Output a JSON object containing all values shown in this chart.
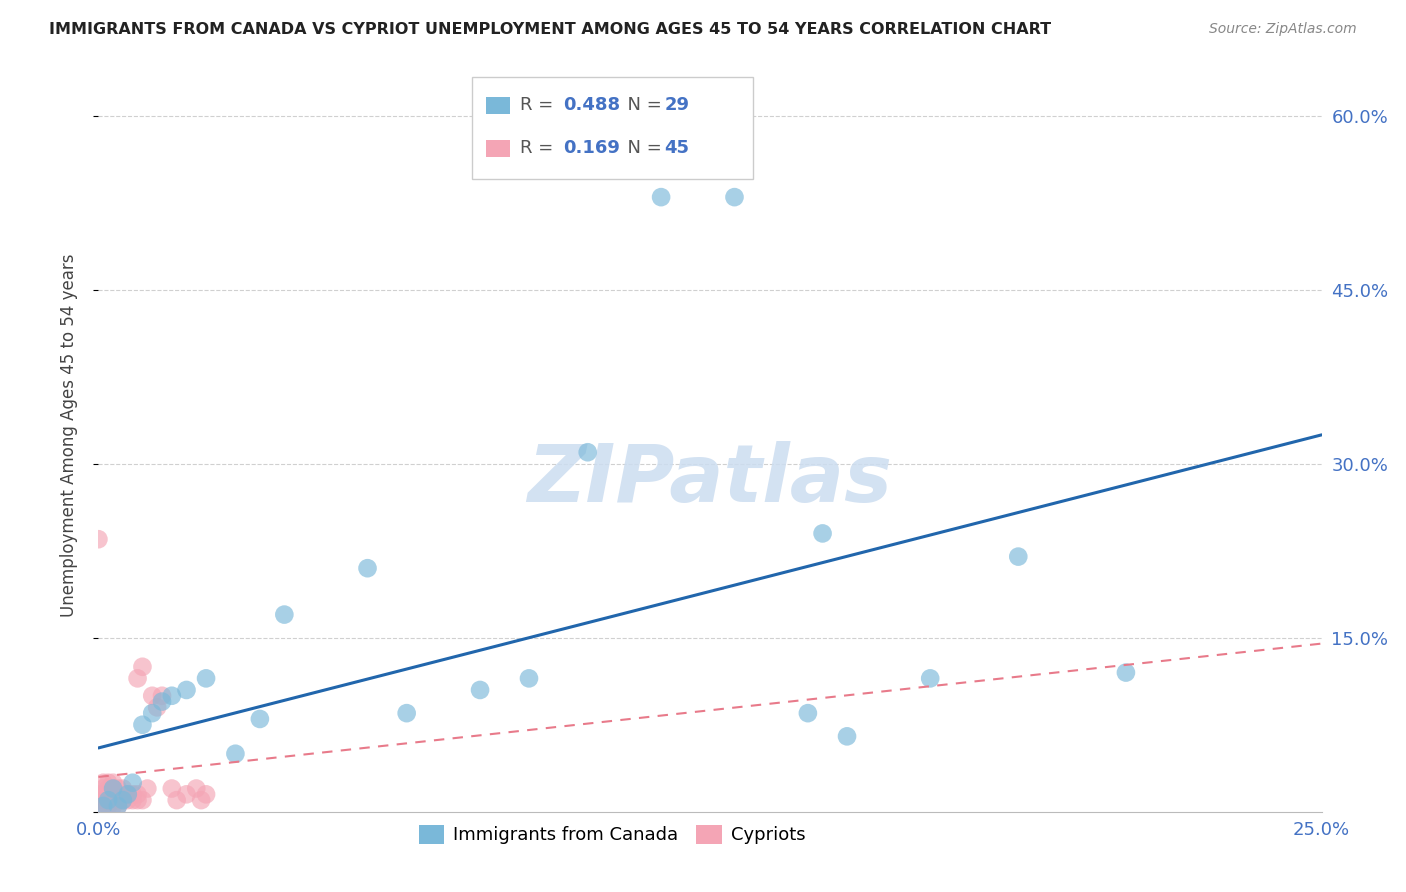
{
  "title": "IMMIGRANTS FROM CANADA VS CYPRIOT UNEMPLOYMENT AMONG AGES 45 TO 54 YEARS CORRELATION CHART",
  "source": "Source: ZipAtlas.com",
  "ylabel": "Unemployment Among Ages 45 to 54 years",
  "xlim": [
    0.0,
    0.25
  ],
  "ylim": [
    0.0,
    0.65
  ],
  "xticks": [
    0.0,
    0.05,
    0.1,
    0.15,
    0.2,
    0.25
  ],
  "yticks": [
    0.0,
    0.15,
    0.3,
    0.45,
    0.6
  ],
  "ytick_labels_right": [
    "",
    "15.0%",
    "30.0%",
    "45.0%",
    "60.0%"
  ],
  "xtick_labels": [
    "0.0%",
    "",
    "",
    "",
    "",
    "25.0%"
  ],
  "blue_scatter_x": [
    0.001,
    0.002,
    0.003,
    0.004,
    0.005,
    0.006,
    0.007,
    0.009,
    0.011,
    0.013,
    0.015,
    0.018,
    0.022,
    0.028,
    0.033,
    0.038,
    0.055,
    0.063,
    0.078,
    0.088,
    0.1,
    0.115,
    0.13,
    0.145,
    0.148,
    0.153,
    0.17,
    0.188,
    0.21
  ],
  "blue_scatter_y": [
    0.005,
    0.01,
    0.02,
    0.005,
    0.01,
    0.015,
    0.025,
    0.075,
    0.085,
    0.095,
    0.1,
    0.105,
    0.115,
    0.05,
    0.08,
    0.17,
    0.21,
    0.085,
    0.105,
    0.115,
    0.31,
    0.53,
    0.53,
    0.085,
    0.24,
    0.065,
    0.115,
    0.22,
    0.12
  ],
  "pink_scatter_x": [
    0.0,
    0.0,
    0.0,
    0.001,
    0.001,
    0.001,
    0.001,
    0.001,
    0.002,
    0.002,
    0.002,
    0.002,
    0.002,
    0.003,
    0.003,
    0.003,
    0.003,
    0.003,
    0.004,
    0.004,
    0.004,
    0.004,
    0.005,
    0.005,
    0.005,
    0.006,
    0.006,
    0.007,
    0.007,
    0.008,
    0.008,
    0.008,
    0.009,
    0.009,
    0.01,
    0.011,
    0.012,
    0.013,
    0.015,
    0.016,
    0.018,
    0.02,
    0.021,
    0.022,
    0.0
  ],
  "pink_scatter_y": [
    0.005,
    0.01,
    0.015,
    0.005,
    0.01,
    0.015,
    0.02,
    0.025,
    0.005,
    0.01,
    0.015,
    0.02,
    0.025,
    0.005,
    0.01,
    0.015,
    0.02,
    0.025,
    0.005,
    0.01,
    0.015,
    0.02,
    0.01,
    0.015,
    0.02,
    0.01,
    0.015,
    0.01,
    0.015,
    0.01,
    0.015,
    0.115,
    0.01,
    0.125,
    0.02,
    0.1,
    0.09,
    0.1,
    0.02,
    0.01,
    0.015,
    0.02,
    0.01,
    0.015,
    0.235
  ],
  "blue_line_x": [
    0.0,
    0.25
  ],
  "blue_line_y": [
    0.055,
    0.325
  ],
  "pink_line_x": [
    0.0,
    0.25
  ],
  "pink_line_y": [
    0.03,
    0.145
  ],
  "legend_R_blue": "0.488",
  "legend_N_blue": "29",
  "legend_R_pink": "0.169",
  "legend_N_pink": "45",
  "blue_color": "#7ab8d9",
  "pink_color": "#f4a5b5",
  "blue_line_color": "#2166ac",
  "pink_line_color": "#e87a8a",
  "watermark_text": "ZIPatlas",
  "watermark_color": "#ccddf0",
  "background_color": "#ffffff",
  "grid_color": "#d0d0d0",
  "axis_label_color": "#4472c4",
  "ylabel_color": "#444444",
  "title_color": "#222222",
  "source_color": "#888888"
}
